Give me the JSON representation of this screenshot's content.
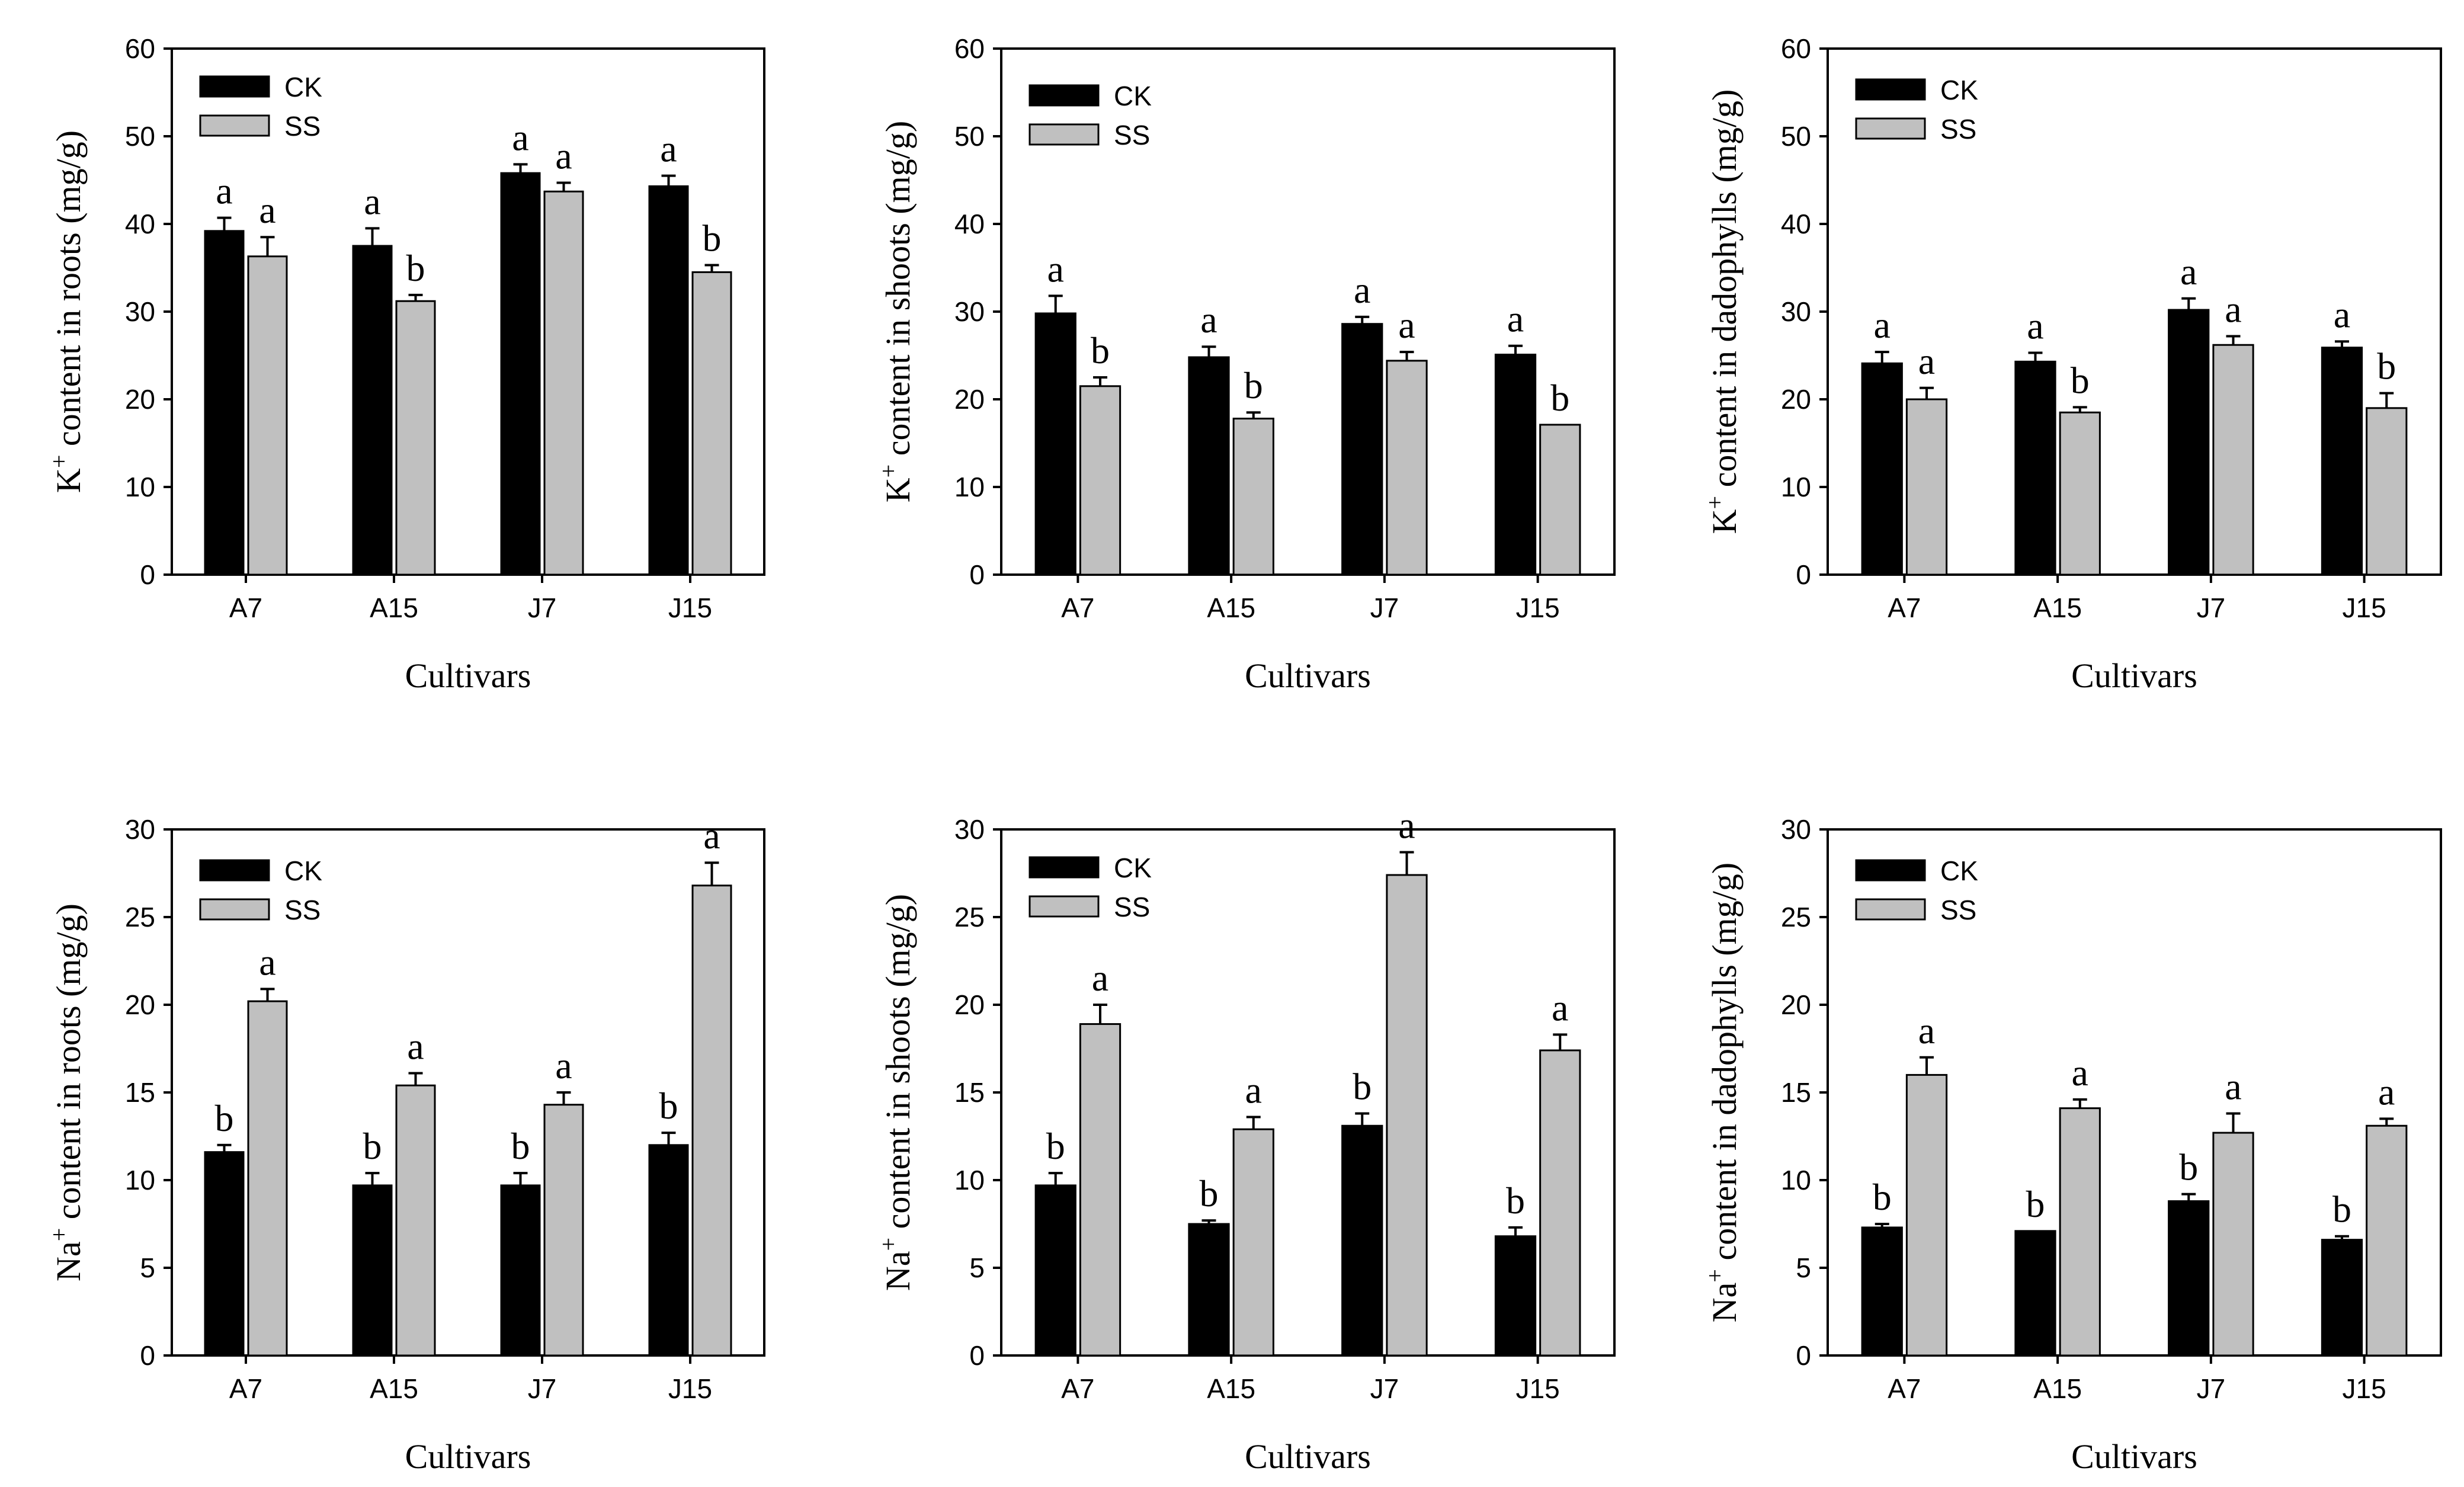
{
  "colors": {
    "ck": "#000000",
    "ss": "#c0c0c0",
    "axis": "#000000"
  },
  "chart_data": [
    {
      "type": "bar",
      "ylabel_base": "K",
      "ylabel_sup": "+",
      "ylabel_rest": " content in roots (mg/g)",
      "xlabel": "Cultivars",
      "categories": [
        "A7",
        "A15",
        "J7",
        "J15"
      ],
      "ylim": [
        0,
        60
      ],
      "yticks": [
        0,
        10,
        20,
        30,
        40,
        50,
        60
      ],
      "legend": [
        "CK",
        "SS"
      ],
      "series": [
        {
          "name": "CK",
          "values": [
            39.2,
            37.5,
            45.8,
            44.3
          ],
          "errors": [
            1.5,
            2.0,
            1.0,
            1.2
          ],
          "letters": [
            "a",
            "a",
            "a",
            "a"
          ]
        },
        {
          "name": "SS",
          "values": [
            36.3,
            31.2,
            43.7,
            34.5
          ],
          "errors": [
            2.2,
            0.7,
            1.0,
            0.8
          ],
          "letters": [
            "a",
            "b",
            "a",
            "b"
          ]
        }
      ]
    },
    {
      "type": "bar",
      "ylabel_base": "K",
      "ylabel_sup": "+",
      "ylabel_rest": " content in shoots (mg/g)",
      "xlabel": "Cultivars",
      "categories": [
        "A7",
        "A15",
        "J7",
        "J15"
      ],
      "ylim": [
        0,
        60
      ],
      "yticks": [
        0,
        10,
        20,
        30,
        40,
        50,
        60
      ],
      "legend": [
        "CK",
        "SS"
      ],
      "series": [
        {
          "name": "CK",
          "values": [
            29.8,
            24.8,
            28.6,
            25.1
          ],
          "errors": [
            2.0,
            1.2,
            0.8,
            1.0
          ],
          "letters": [
            "a",
            "a",
            "a",
            "a"
          ]
        },
        {
          "name": "SS",
          "values": [
            21.5,
            17.8,
            24.4,
            17.1
          ],
          "errors": [
            1.0,
            0.7,
            1.0,
            0.0
          ],
          "letters": [
            "b",
            "b",
            "a",
            "b"
          ]
        }
      ]
    },
    {
      "type": "bar",
      "ylabel_base": "K",
      "ylabel_sup": "+",
      "ylabel_rest": " content in dadophylls (mg/g)",
      "xlabel": "Cultivars",
      "categories": [
        "A7",
        "A15",
        "J7",
        "J15"
      ],
      "ylim": [
        0,
        60
      ],
      "yticks": [
        0,
        10,
        20,
        30,
        40,
        50,
        60
      ],
      "legend": [
        "CK",
        "SS"
      ],
      "series": [
        {
          "name": "CK",
          "values": [
            24.1,
            24.3,
            30.2,
            25.9
          ],
          "errors": [
            1.3,
            1.0,
            1.3,
            0.7
          ],
          "letters": [
            "a",
            "a",
            "a",
            "a"
          ]
        },
        {
          "name": "SS",
          "values": [
            20.0,
            18.5,
            26.2,
            19.0
          ],
          "errors": [
            1.3,
            0.6,
            1.0,
            1.7
          ],
          "letters": [
            "a",
            "b",
            "a",
            "b"
          ]
        }
      ]
    },
    {
      "type": "bar",
      "ylabel_base": "Na",
      "ylabel_sup": "+",
      "ylabel_rest": " content in roots (mg/g)",
      "xlabel": "Cultivars",
      "categories": [
        "A7",
        "A15",
        "J7",
        "J15"
      ],
      "ylim": [
        0,
        30
      ],
      "yticks": [
        0,
        5,
        10,
        15,
        20,
        25,
        30
      ],
      "legend": [
        "CK",
        "SS"
      ],
      "series": [
        {
          "name": "CK",
          "values": [
            11.6,
            9.7,
            9.7,
            12.0
          ],
          "errors": [
            0.4,
            0.7,
            0.7,
            0.7
          ],
          "letters": [
            "b",
            "b",
            "b",
            "b"
          ]
        },
        {
          "name": "SS",
          "values": [
            20.2,
            15.4,
            14.3,
            26.8
          ],
          "errors": [
            0.7,
            0.7,
            0.7,
            1.3
          ],
          "letters": [
            "a",
            "a",
            "a",
            "a"
          ]
        }
      ]
    },
    {
      "type": "bar",
      "ylabel_base": "Na",
      "ylabel_sup": "+",
      "ylabel_rest": " content in shoots (mg/g)",
      "xlabel": "Cultivars",
      "categories": [
        "A7",
        "A15",
        "J7",
        "J15"
      ],
      "ylim": [
        0,
        30
      ],
      "yticks": [
        0,
        5,
        10,
        15,
        20,
        25,
        30
      ],
      "legend": [
        "CK",
        "SS"
      ],
      "series": [
        {
          "name": "CK",
          "values": [
            9.7,
            7.5,
            13.1,
            6.8
          ],
          "errors": [
            0.7,
            0.2,
            0.7,
            0.5
          ],
          "letters": [
            "b",
            "b",
            "b",
            "b"
          ]
        },
        {
          "name": "SS",
          "values": [
            18.9,
            12.9,
            27.4,
            17.4
          ],
          "errors": [
            1.1,
            0.7,
            1.3,
            0.9
          ],
          "letters": [
            "a",
            "a",
            "a",
            "a"
          ]
        }
      ]
    },
    {
      "type": "bar",
      "ylabel_base": "Na",
      "ylabel_sup": "+",
      "ylabel_rest": " content in dadophylls (mg/g)",
      "xlabel": "Cultivars",
      "categories": [
        "A7",
        "A15",
        "J7",
        "J15"
      ],
      "ylim": [
        0,
        30
      ],
      "yticks": [
        0,
        5,
        10,
        15,
        20,
        25,
        30
      ],
      "legend": [
        "CK",
        "SS"
      ],
      "series": [
        {
          "name": "CK",
          "values": [
            7.3,
            7.1,
            8.8,
            6.6
          ],
          "errors": [
            0.2,
            0.0,
            0.4,
            0.2
          ],
          "letters": [
            "b",
            "b",
            "b",
            "b"
          ]
        },
        {
          "name": "SS",
          "values": [
            16.0,
            14.1,
            12.7,
            13.1
          ],
          "errors": [
            1.0,
            0.5,
            1.1,
            0.4
          ],
          "letters": [
            "a",
            "a",
            "a",
            "a"
          ]
        }
      ]
    }
  ]
}
